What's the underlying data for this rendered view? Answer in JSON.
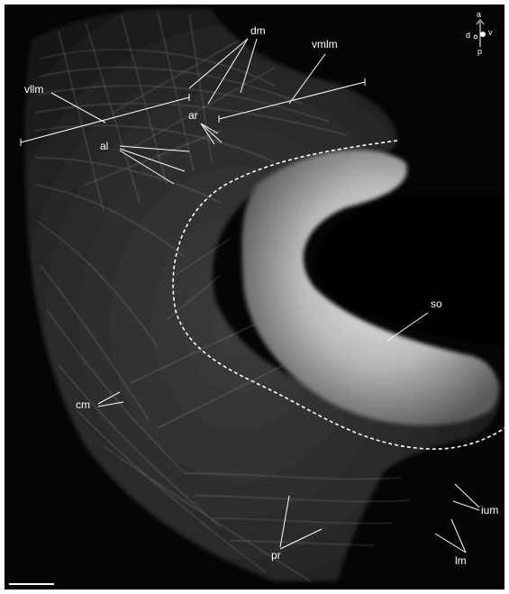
{
  "figure": {
    "labels": {
      "dm": "dm",
      "vmlm": "vmlm",
      "vllm": "vllm",
      "ar": "ar",
      "al": "al",
      "so": "so",
      "cm": "cm",
      "ium": "ium",
      "pr": "pr",
      "lm": "lm"
    },
    "orientation": {
      "a": "a",
      "p": "p",
      "d": "d",
      "v": "v"
    },
    "colors": {
      "background": "#050505",
      "annotation": "#ffffff",
      "fibers": "#d9d9d9"
    }
  }
}
